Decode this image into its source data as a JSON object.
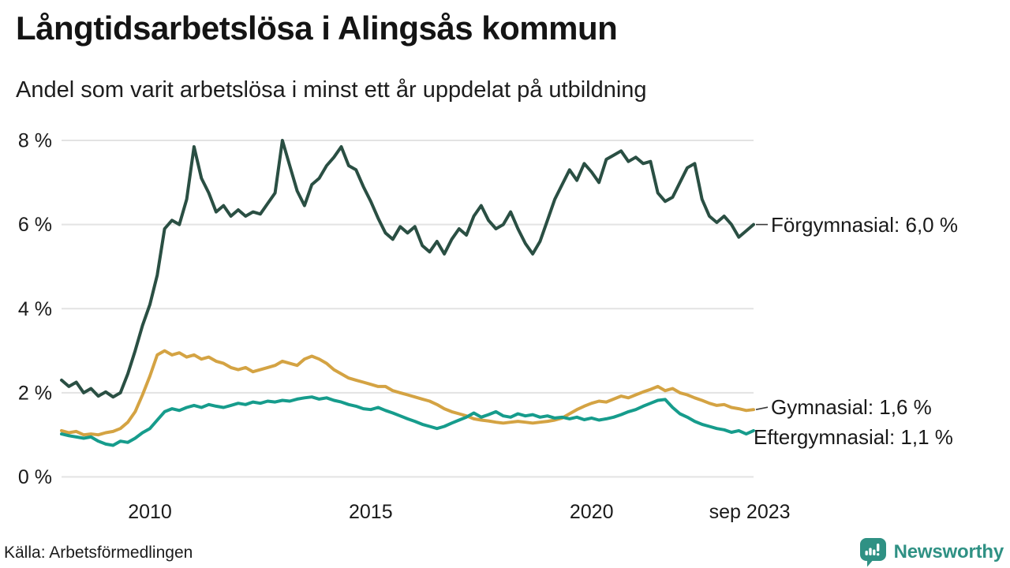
{
  "header": {
    "title": "Långtidsarbetslösa i Alingsås kommun",
    "subtitle": "Andel som varit arbetslösa i minst ett år uppdelat på utbildning"
  },
  "footer": {
    "source": "Källa: Arbetsförmedlingen",
    "brand": "Newsworthy"
  },
  "colors": {
    "forgymnasial": "#2a4f43",
    "gymnasial": "#d4a343",
    "eftergymnasial": "#169c8c",
    "grid": "#e3e3e3",
    "text": "#1a1a1a",
    "connector": "#3a3a3a",
    "brand_teal": "#2f9184"
  },
  "chart_data": {
    "type": "line",
    "title": "Långtidsarbetslösa i Alingsås kommun",
    "subtitle": "Andel som varit arbetslösa i minst ett år uppdelat på utbildning",
    "xlabel": "",
    "ylabel": "",
    "grid": "horizontal",
    "legend_position": "right-inline-annotations",
    "xlim": [
      2008.0,
      2023.667
    ],
    "ylim": [
      0,
      8
    ],
    "x_start": 2008.0,
    "x_step_years": 0.16667,
    "x_unit": "year (monthly series, sampled bimonthly)",
    "y_unit": "percent",
    "x_ticks": [
      {
        "value": 2010,
        "label": "2010"
      },
      {
        "value": 2015,
        "label": "2015"
      },
      {
        "value": 2020,
        "label": "2020"
      },
      {
        "value": 2023.58,
        "label": "sep 2023"
      }
    ],
    "y_ticks": [
      {
        "value": 0,
        "label": "0 %"
      },
      {
        "value": 2,
        "label": "2 %"
      },
      {
        "value": 4,
        "label": "4 %"
      },
      {
        "value": 6,
        "label": "6 %"
      },
      {
        "value": 8,
        "label": "8 %"
      }
    ],
    "series": [
      {
        "id": "forgymnasial",
        "name": "Förgymnasial",
        "annotation": "Förgymnasial: 6,0 %",
        "final_value": 6.0,
        "color_key": "forgymnasial",
        "values": [
          2.3,
          2.15,
          2.25,
          2.0,
          2.1,
          1.92,
          2.02,
          1.9,
          2.0,
          2.45,
          3.0,
          3.6,
          4.1,
          4.8,
          5.9,
          6.1,
          6.0,
          6.6,
          7.85,
          7.1,
          6.75,
          6.3,
          6.45,
          6.2,
          6.35,
          6.2,
          6.3,
          6.25,
          6.5,
          6.75,
          8.0,
          7.4,
          6.8,
          6.45,
          6.95,
          7.1,
          7.4,
          7.6,
          7.85,
          7.4,
          7.3,
          6.9,
          6.55,
          6.15,
          5.8,
          5.65,
          5.95,
          5.8,
          5.95,
          5.5,
          5.35,
          5.6,
          5.3,
          5.65,
          5.9,
          5.75,
          6.2,
          6.45,
          6.1,
          5.9,
          6.0,
          6.3,
          5.9,
          5.55,
          5.3,
          5.6,
          6.1,
          6.6,
          6.95,
          7.3,
          7.05,
          7.45,
          7.25,
          7.0,
          7.55,
          7.65,
          7.75,
          7.5,
          7.6,
          7.45,
          7.5,
          6.75,
          6.55,
          6.65,
          7.0,
          7.35,
          7.45,
          6.6,
          6.2,
          6.05,
          6.2,
          6.0,
          5.7,
          5.85,
          6.0
        ]
      },
      {
        "id": "gymnasial",
        "name": "Gymnasial",
        "annotation": "Gymnasial: 1,6 %",
        "final_value": 1.6,
        "color_key": "gymnasial",
        "values": [
          1.1,
          1.05,
          1.08,
          1.0,
          1.02,
          1.0,
          1.05,
          1.08,
          1.15,
          1.3,
          1.55,
          1.95,
          2.4,
          2.9,
          3.0,
          2.9,
          2.95,
          2.85,
          2.9,
          2.8,
          2.85,
          2.75,
          2.7,
          2.6,
          2.55,
          2.6,
          2.5,
          2.55,
          2.6,
          2.65,
          2.75,
          2.7,
          2.65,
          2.8,
          2.87,
          2.8,
          2.7,
          2.55,
          2.45,
          2.35,
          2.3,
          2.25,
          2.2,
          2.15,
          2.15,
          2.05,
          2.0,
          1.95,
          1.9,
          1.85,
          1.8,
          1.72,
          1.62,
          1.55,
          1.5,
          1.45,
          1.38,
          1.35,
          1.33,
          1.3,
          1.28,
          1.3,
          1.32,
          1.3,
          1.28,
          1.3,
          1.32,
          1.35,
          1.4,
          1.5,
          1.6,
          1.68,
          1.75,
          1.8,
          1.78,
          1.85,
          1.92,
          1.88,
          1.95,
          2.02,
          2.08,
          2.15,
          2.05,
          2.1,
          2.0,
          1.95,
          1.88,
          1.82,
          1.75,
          1.7,
          1.72,
          1.65,
          1.62,
          1.58,
          1.6
        ]
      },
      {
        "id": "eftergymnasial",
        "name": "Eftergymnasial",
        "annotation": "Eftergymnasial: 1,1 %",
        "final_value": 1.1,
        "color_key": "eftergymnasial",
        "values": [
          1.02,
          0.98,
          0.95,
          0.92,
          0.95,
          0.85,
          0.78,
          0.75,
          0.85,
          0.82,
          0.92,
          1.05,
          1.15,
          1.35,
          1.55,
          1.62,
          1.58,
          1.65,
          1.7,
          1.65,
          1.72,
          1.68,
          1.65,
          1.7,
          1.75,
          1.72,
          1.78,
          1.75,
          1.8,
          1.78,
          1.82,
          1.8,
          1.85,
          1.88,
          1.9,
          1.85,
          1.88,
          1.82,
          1.78,
          1.72,
          1.68,
          1.62,
          1.6,
          1.65,
          1.58,
          1.52,
          1.45,
          1.38,
          1.32,
          1.25,
          1.2,
          1.15,
          1.2,
          1.28,
          1.35,
          1.42,
          1.52,
          1.42,
          1.48,
          1.55,
          1.45,
          1.42,
          1.5,
          1.45,
          1.48,
          1.42,
          1.45,
          1.4,
          1.42,
          1.38,
          1.42,
          1.36,
          1.4,
          1.35,
          1.38,
          1.42,
          1.48,
          1.55,
          1.6,
          1.68,
          1.75,
          1.82,
          1.84,
          1.65,
          1.5,
          1.42,
          1.32,
          1.25,
          1.2,
          1.15,
          1.12,
          1.06,
          1.1,
          1.02,
          1.1
        ]
      }
    ]
  }
}
